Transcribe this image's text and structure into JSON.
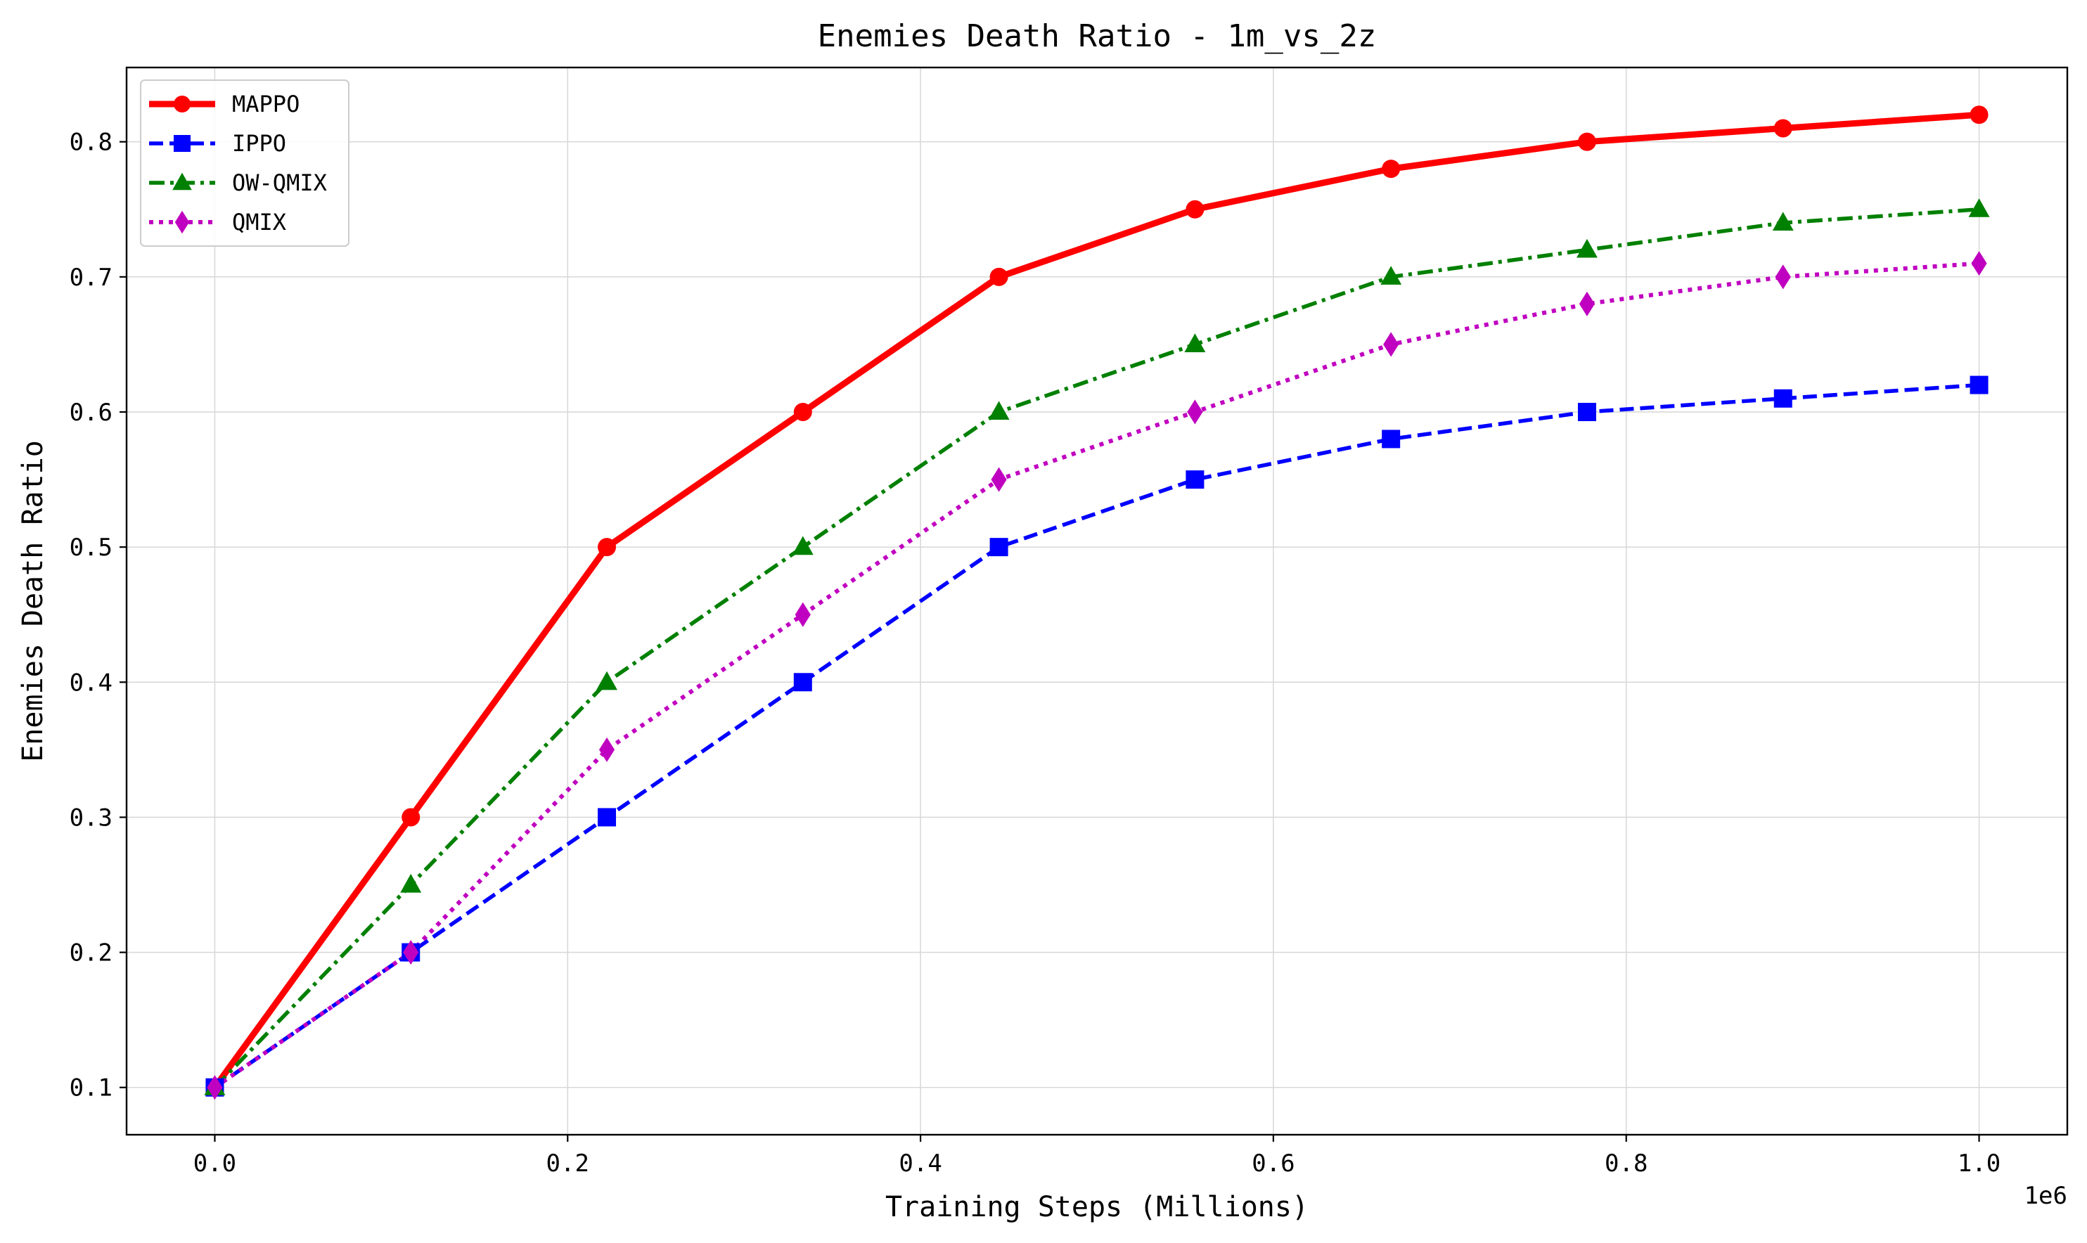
{
  "chart_data": {
    "type": "line",
    "title": "Enemies Death Ratio - 1m_vs_2z",
    "xlabel": "Training Steps (Millions)",
    "ylabel": "Enemies Death Ratio",
    "x_offset_label": "1e6",
    "x": [
      0,
      111111,
      222222,
      333333,
      444444,
      555556,
      666667,
      777778,
      888889,
      1000000
    ],
    "xlim": [
      -50000,
      1050000
    ],
    "ylim": [
      0.065,
      0.855
    ],
    "x_ticks": [
      0,
      200000,
      400000,
      600000,
      800000,
      1000000
    ],
    "x_tick_labels": [
      "0.0",
      "0.2",
      "0.4",
      "0.6",
      "0.8",
      "1.0"
    ],
    "y_ticks": [
      0.1,
      0.2,
      0.3,
      0.4,
      0.5,
      0.6,
      0.7,
      0.8
    ],
    "y_tick_labels": [
      "0.1",
      "0.2",
      "0.3",
      "0.4",
      "0.5",
      "0.6",
      "0.7",
      "0.8"
    ],
    "grid": true,
    "legend_position": "top-left",
    "series": [
      {
        "name": "MAPPO",
        "color": "#ff0000",
        "line_style": "solid",
        "marker": "circle",
        "values": [
          0.1,
          0.3,
          0.5,
          0.6,
          0.7,
          0.75,
          0.78,
          0.8,
          0.81,
          0.82
        ]
      },
      {
        "name": "IPPO",
        "color": "#0000ff",
        "line_style": "dashed",
        "marker": "square",
        "values": [
          0.1,
          0.2,
          0.3,
          0.4,
          0.5,
          0.55,
          0.58,
          0.6,
          0.61,
          0.62
        ]
      },
      {
        "name": "OW-QMIX",
        "color": "#008000",
        "line_style": "dash-dot",
        "marker": "triangle",
        "values": [
          0.1,
          0.25,
          0.4,
          0.5,
          0.6,
          0.65,
          0.7,
          0.72,
          0.74,
          0.75
        ]
      },
      {
        "name": "QMIX",
        "color": "#c000c0",
        "line_style": "dotted",
        "marker": "diamond",
        "values": [
          0.1,
          0.2,
          0.35,
          0.45,
          0.55,
          0.6,
          0.65,
          0.68,
          0.7,
          0.71
        ]
      }
    ]
  }
}
